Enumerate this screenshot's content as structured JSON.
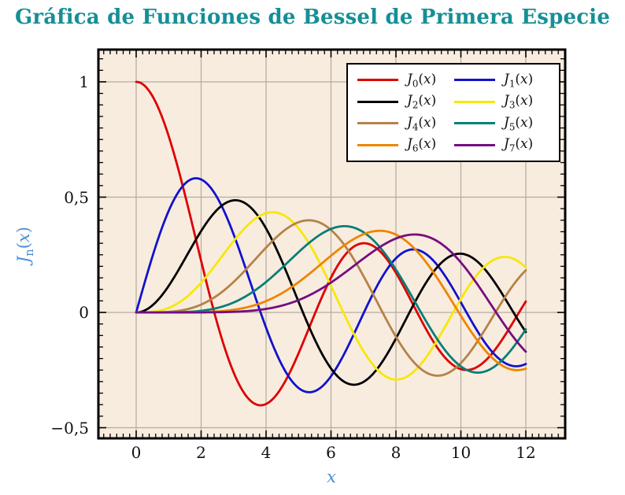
{
  "page": {
    "title": "Gráfica de Funciones de Bessel de Primera Especie",
    "title_color": "#168f96",
    "background_color": "#ffffff"
  },
  "chart_data": {
    "type": "line",
    "title": "Gráfica de Funciones de Bessel de Primera Especie",
    "xlabel": "x",
    "ylabel": "J_n(x)",
    "axis_label_color": "#4d8ed3",
    "plot_background": "#f8ecdf",
    "grid": true,
    "grid_color": "#b3aaa1",
    "frame_color": "#000000",
    "x_range": [
      0,
      12
    ],
    "xlim": [
      -1.16,
      13.21
    ],
    "ylim": [
      -0.546,
      1.14
    ],
    "x_ticks": [
      0,
      2,
      4,
      6,
      8,
      10,
      12
    ],
    "x_tick_labels": [
      "0",
      "2",
      "4",
      "6",
      "8",
      "10",
      "12"
    ],
    "y_ticks": [
      1,
      0.5,
      0,
      -0.5
    ],
    "y_tick_labels": [
      "1",
      "0,5",
      "0",
      "−0,5"
    ],
    "x_minor_step": 0.2,
    "y_minor_step": 0.05,
    "legend_position": "top-right",
    "function_family": "Bessel function of the first kind J_n",
    "x_samples": [
      0,
      1,
      2,
      3,
      4,
      5,
      6,
      7,
      8,
      9,
      10,
      11,
      12
    ],
    "series": [
      {
        "label": "J_0(x)",
        "order": 0,
        "color": "#dd0000",
        "values": [
          1.0,
          0.7652,
          0.2239,
          -0.2601,
          -0.3971,
          -0.1776,
          0.1506,
          0.3001,
          0.1717,
          -0.0903,
          -0.2459,
          -0.1712,
          0.0477
        ]
      },
      {
        "label": "J_1(x)",
        "order": 1,
        "color": "#1212cc",
        "values": [
          0.0,
          0.4401,
          0.5767,
          0.3391,
          -0.066,
          -0.3276,
          -0.2767,
          -0.0047,
          0.2346,
          0.2453,
          0.0435,
          -0.1768,
          -0.2234
        ]
      },
      {
        "label": "J_2(x)",
        "order": 2,
        "color": "#000000",
        "values": [
          0.0,
          0.1149,
          0.3528,
          0.4861,
          0.3641,
          0.0466,
          -0.2429,
          -0.3014,
          -0.113,
          0.1448,
          0.2546,
          0.139,
          -0.0849
        ]
      },
      {
        "label": "J_3(x)",
        "order": 3,
        "color": "#f5e80a",
        "values": [
          0.0,
          0.0196,
          0.1289,
          0.3091,
          0.4302,
          0.3648,
          0.1148,
          -0.1676,
          -0.2911,
          -0.1809,
          0.0584,
          0.2273,
          0.1951
        ]
      },
      {
        "label": "J_4(x)",
        "order": 4,
        "color": "#b58248",
        "values": [
          0.0,
          0.0025,
          0.034,
          0.132,
          0.2811,
          0.3912,
          0.3576,
          0.1578,
          -0.1054,
          -0.2655,
          -0.2196,
          -0.015,
          0.1825
        ]
      },
      {
        "label": "J_5(x)",
        "order": 5,
        "color": "#087e78",
        "values": [
          0.0,
          0.0002,
          0.007,
          0.043,
          0.1321,
          0.2611,
          0.3621,
          0.3479,
          0.1858,
          -0.055,
          -0.2341,
          -0.2383,
          -0.0735
        ]
      },
      {
        "label": "J_6(x)",
        "order": 6,
        "color": "#ee8500",
        "values": [
          0.0,
          0.0,
          0.0012,
          0.0114,
          0.0491,
          0.131,
          0.2458,
          0.3392,
          0.3376,
          0.2043,
          -0.0145,
          -0.2016,
          -0.2437
        ]
      },
      {
        "label": "J_7(x)",
        "order": 7,
        "color": "#740e80",
        "values": [
          0.0,
          0.0,
          0.0002,
          0.0025,
          0.0152,
          0.0534,
          0.1296,
          0.2336,
          0.3206,
          0.3275,
          0.2167,
          0.0184,
          -0.1703
        ]
      }
    ]
  }
}
